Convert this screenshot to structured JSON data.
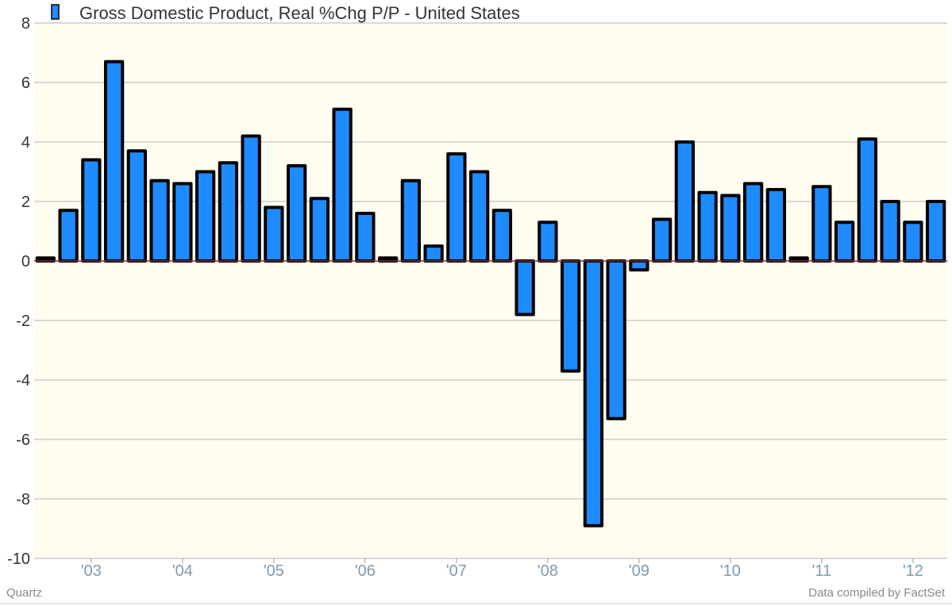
{
  "chart_data": {
    "type": "bar",
    "legend": "Gross Domestic Product, Real %Chg P/P - United States",
    "series": [
      {
        "name": "Gross Domestic Product, Real %Chg P/P - United States",
        "values": [
          0.1,
          1.7,
          3.4,
          6.7,
          3.7,
          2.7,
          2.6,
          3.0,
          3.3,
          4.2,
          1.8,
          3.2,
          2.1,
          5.1,
          1.6,
          0.1,
          2.7,
          0.5,
          3.6,
          3.0,
          1.7,
          -1.8,
          1.3,
          -3.7,
          -8.9,
          -5.3,
          -0.3,
          1.4,
          4.0,
          2.3,
          2.2,
          2.6,
          2.4,
          0.1,
          2.5,
          1.3,
          4.1,
          2.0,
          1.3,
          2.0
        ]
      }
    ],
    "x_tick_labels": [
      "'03",
      "'04",
      "'05",
      "'06",
      "'07",
      "'08",
      "'09",
      "'10",
      "'11",
      "'12"
    ],
    "y_ticks": [
      8,
      6,
      4,
      2,
      0,
      -2,
      -4,
      -6,
      -8,
      -10
    ],
    "ylim": [
      -10,
      8
    ],
    "grid": true,
    "colors": {
      "bar_fill": "#1e8bff",
      "bar_stroke": "#000000",
      "plot_bg": "#fffdf0",
      "grid": "#b4b4b4",
      "zero_line": "#7a3344"
    }
  },
  "footer": {
    "source_left": "Quartz",
    "source_right": "Data compiled by FactSet"
  }
}
